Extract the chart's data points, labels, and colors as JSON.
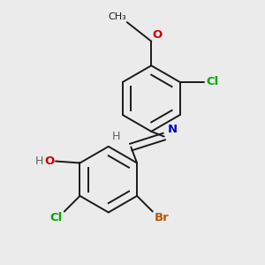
{
  "background_color": "#ebebeb",
  "bond_color": "#1a1a1a",
  "bond_width": 1.4,
  "atom_colors": {
    "C": "#1a1a1a",
    "H": "#606060",
    "O": "#cc0000",
    "N": "#0000cc",
    "Cl": "#00aa00",
    "Br": "#bb5500"
  },
  "font_size": 9.5,
  "font_family": "DejaVu Sans"
}
